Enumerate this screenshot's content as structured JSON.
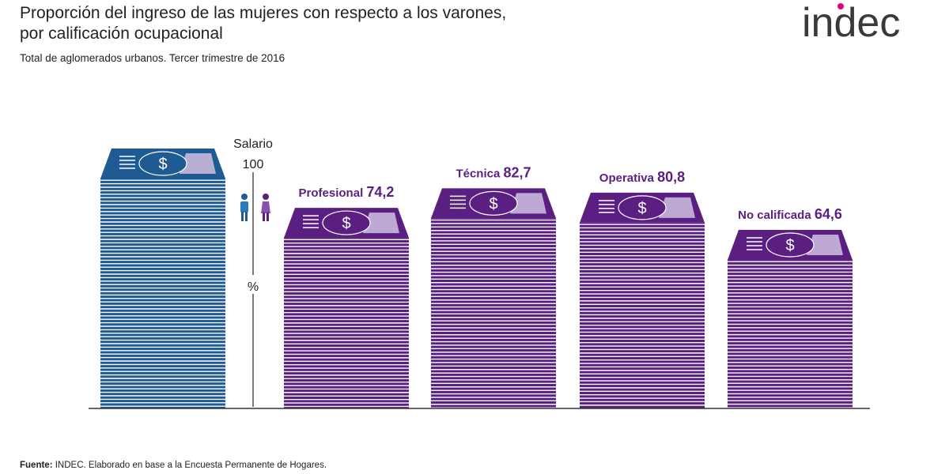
{
  "header": {
    "title_line1": "Proporción del ingreso de las mujeres con respecto a los varones,",
    "title_line2": "por calificación ocupacional",
    "subtitle": "Total de aglomerados urbanos. Tercer trimestre de 2016"
  },
  "logo": {
    "text": "indec",
    "brand_color": "#3a3a3a",
    "accent_colors": [
      "#e6007e",
      "#2e6fb5"
    ]
  },
  "reference": {
    "label_line1": "Salario",
    "label_line2": "100",
    "unit": "%",
    "icons": [
      "male-icon",
      "female-icon"
    ]
  },
  "chart_data": {
    "type": "bar",
    "categories": [
      "Profesional",
      "Técnica",
      "Operativa",
      "No calificada"
    ],
    "values": [
      74.2,
      82.7,
      80.8,
      64.6
    ],
    "value_labels": [
      "74,2",
      "82,7",
      "80,8",
      "64,6"
    ],
    "reference_value": 100,
    "ylim": [
      0,
      100
    ],
    "grid": false,
    "colors": {
      "reference": "#1f5a93",
      "bars": "#5b1f82",
      "bill_light": "#ffffff"
    }
  },
  "footer": {
    "source_label": "Fuente:",
    "source_text": " INDEC. Elaborado en base a la Encuesta Permanente de Hogares."
  }
}
